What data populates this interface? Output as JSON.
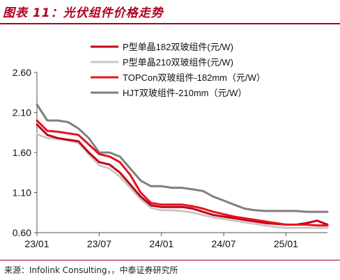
{
  "header": {
    "title": "图表 11：光伏组件价格走势"
  },
  "footer": {
    "source": "来源：Infolink Consulting，，中泰证券研究所"
  },
  "chart_data": {
    "type": "line",
    "x": [
      "23/01",
      "23/02",
      "23/03",
      "23/04",
      "23/05",
      "23/06",
      "23/07",
      "23/08",
      "23/09",
      "23/10",
      "23/11",
      "23/12",
      "24/01",
      "24/02",
      "24/03",
      "24/04",
      "24/05",
      "24/06",
      "24/07",
      "24/08",
      "24/09",
      "24/10",
      "24/11",
      "24/12",
      "25/01",
      "25/02",
      "25/03",
      "25/04",
      "25/05"
    ],
    "xticks": [
      "23/01",
      "23/07",
      "24/01",
      "24/07",
      "25/01"
    ],
    "yticks": [
      "0.60",
      "1.10",
      "1.60",
      "2.10",
      "2.60"
    ],
    "ylim": [
      0.6,
      2.6
    ],
    "colors": {
      "palette": [
        "#c00018",
        "#c8c8c8",
        "#e8101e",
        "#7f7f7f"
      ]
    },
    "series": [
      {
        "name": "P型单晶182双玻组件(元/W)",
        "color": "#c00018",
        "values": [
          1.95,
          1.82,
          1.78,
          1.76,
          1.74,
          1.6,
          1.48,
          1.45,
          1.35,
          1.2,
          1.05,
          0.94,
          0.92,
          0.92,
          0.92,
          0.9,
          0.86,
          0.82,
          0.8,
          0.78,
          0.76,
          0.74,
          0.72,
          0.71,
          0.7,
          0.7,
          0.72,
          0.75,
          0.7
        ]
      },
      {
        "name": "P型单晶210双玻组件(元/W)",
        "color": "#c8c8c8",
        "values": [
          1.83,
          1.78,
          1.77,
          1.75,
          1.72,
          1.58,
          1.44,
          1.4,
          1.3,
          1.16,
          1.02,
          0.91,
          0.88,
          0.88,
          0.87,
          0.85,
          0.82,
          0.79,
          0.77,
          0.75,
          0.73,
          0.71,
          0.69,
          0.67,
          0.66,
          0.66,
          0.66,
          0.66,
          0.66
        ]
      },
      {
        "name": "TOPCon双玻组件-182mm（元/W）",
        "color": "#e8101e",
        "values": [
          2.0,
          1.87,
          1.86,
          1.84,
          1.82,
          1.7,
          1.58,
          1.55,
          1.48,
          1.32,
          1.1,
          0.97,
          0.95,
          0.95,
          0.95,
          0.93,
          0.9,
          0.86,
          0.83,
          0.8,
          0.78,
          0.76,
          0.74,
          0.72,
          0.7,
          0.7,
          0.7,
          0.69,
          0.69
        ]
      },
      {
        "name": "HJT双玻组件-210mm（元/W）",
        "color": "#7f7f7f",
        "values": [
          2.2,
          2.0,
          2.0,
          1.98,
          1.9,
          1.78,
          1.6,
          1.6,
          1.55,
          1.4,
          1.25,
          1.18,
          1.18,
          1.16,
          1.16,
          1.14,
          1.12,
          1.05,
          1.0,
          0.95,
          0.9,
          0.88,
          0.87,
          0.87,
          0.87,
          0.87,
          0.86,
          0.86,
          0.86
        ]
      }
    ]
  }
}
